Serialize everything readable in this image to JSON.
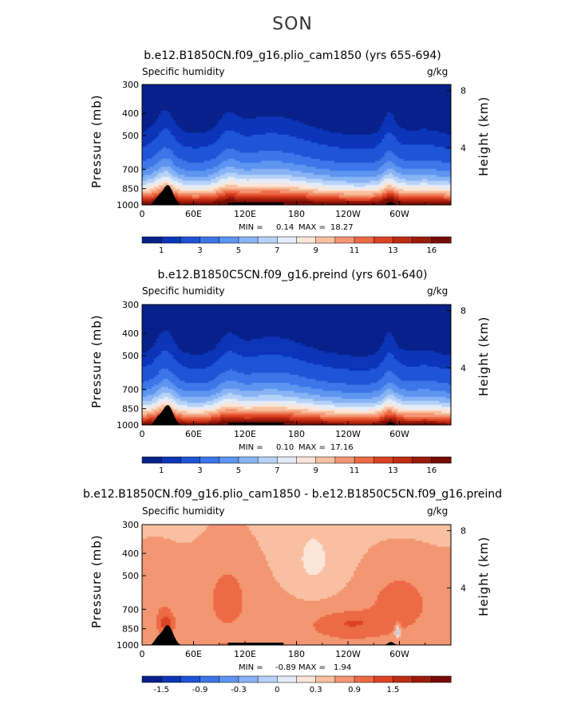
{
  "season": "SON",
  "colors": {
    "humidity_palette": [
      "#08218a",
      "#0c35b8",
      "#1e55d6",
      "#3c76e8",
      "#5e95f0",
      "#88b4f5",
      "#b6d2f8",
      "#e4ecf8",
      "#fbe5d8",
      "#f8c0a0",
      "#f39672",
      "#ec6a45",
      "#dc4325",
      "#be2c14",
      "#9a1c0a",
      "#760c06"
    ],
    "difference_palette": [
      "#08218a",
      "#0c35b8",
      "#1e55d6",
      "#3c76e8",
      "#5e95f0",
      "#88b4f5",
      "#b6d2f8",
      "#e4ecf8",
      "#fbe5d8",
      "#f8c0a0",
      "#f39672",
      "#ec6a45",
      "#dc4325",
      "#be2c14",
      "#9a1c0a",
      "#760c06"
    ],
    "topography": "#000000"
  },
  "chart_data": [
    {
      "type": "heatmap",
      "title": "b.e12.B1850CN.f09_g16.plio_cam1850 (yrs 655-694)",
      "variable": "Specific humidity",
      "units": "g/kg",
      "ylabel": "Pressure (mb)",
      "ylabel_right": "Height (km)",
      "x_ticks": [
        "0",
        "60E",
        "120E",
        "180",
        "120W",
        "60W"
      ],
      "x_tick_values": [
        0,
        60,
        120,
        180,
        240,
        300
      ],
      "x_range": [
        0,
        360
      ],
      "pressure_ticks": [
        "300",
        "400",
        "500",
        "700",
        "850",
        "1000"
      ],
      "pressure_values": [
        300,
        400,
        500,
        700,
        850,
        1000
      ],
      "pressure_range": [
        300,
        1000
      ],
      "height_ticks": [
        "8",
        "4"
      ],
      "height_values": [
        8,
        4
      ],
      "min_label": "MIN =",
      "min_value": "0.14",
      "max_label": "MAX =",
      "max_value": "18.27",
      "colorbar_labels": [
        "1",
        "3",
        "5",
        "7",
        "9",
        "11",
        "13",
        "16"
      ],
      "colorbar_levels": [
        0.5,
        1,
        2,
        3,
        4,
        5,
        6,
        7,
        8,
        9,
        10,
        11,
        12,
        13,
        14,
        16
      ],
      "colorbar_label_positions": [
        1,
        3,
        5,
        7,
        9,
        11,
        13,
        15
      ],
      "field_kind": "humidity",
      "surface_q": 16.5,
      "upper_q": 0.3
    },
    {
      "type": "heatmap",
      "title": "b.e12.B1850C5CN.f09_g16.preind (yrs 601-640)",
      "variable": "Specific humidity",
      "units": "g/kg",
      "ylabel": "Pressure (mb)",
      "ylabel_right": "Height (km)",
      "x_ticks": [
        "0",
        "60E",
        "120E",
        "180",
        "120W",
        "60W"
      ],
      "x_tick_values": [
        0,
        60,
        120,
        180,
        240,
        300
      ],
      "x_range": [
        0,
        360
      ],
      "pressure_ticks": [
        "300",
        "400",
        "500",
        "700",
        "850",
        "1000"
      ],
      "pressure_values": [
        300,
        400,
        500,
        700,
        850,
        1000
      ],
      "pressure_range": [
        300,
        1000
      ],
      "height_ticks": [
        "8",
        "4"
      ],
      "height_values": [
        8,
        4
      ],
      "min_label": "MIN =",
      "min_value": "0.10",
      "max_label": "MAX =",
      "max_value": "17.16",
      "colorbar_labels": [
        "1",
        "3",
        "5",
        "7",
        "9",
        "11",
        "13",
        "16"
      ],
      "colorbar_levels": [
        0.5,
        1,
        2,
        3,
        4,
        5,
        6,
        7,
        8,
        9,
        10,
        11,
        12,
        13,
        14,
        16
      ],
      "colorbar_label_positions": [
        1,
        3,
        5,
        7,
        9,
        11,
        13,
        15
      ],
      "field_kind": "humidity",
      "surface_q": 15.8,
      "upper_q": 0.25
    },
    {
      "type": "heatmap",
      "title": "b.e12.B1850CN.f09_g16.plio_cam1850 - b.e12.B1850C5CN.f09_g16.preind",
      "variable": "Specific humidity",
      "units": "g/kg",
      "ylabel": "Pressure (mb)",
      "ylabel_right": "Height (km)",
      "x_ticks": [
        "0",
        "60E",
        "120E",
        "180",
        "120W",
        "60W"
      ],
      "x_tick_values": [
        0,
        60,
        120,
        180,
        240,
        300
      ],
      "x_range": [
        0,
        360
      ],
      "pressure_ticks": [
        "300",
        "400",
        "500",
        "700",
        "850",
        "1000"
      ],
      "pressure_values": [
        300,
        400,
        500,
        700,
        850,
        1000
      ],
      "pressure_range": [
        300,
        1000
      ],
      "height_ticks": [
        "8",
        "4"
      ],
      "height_values": [
        8,
        4
      ],
      "min_label": "MIN =",
      "min_value": "-0.89",
      "max_label": "MAX =",
      "max_value": "1.94",
      "colorbar_labels": [
        "-1.5",
        "-0.9",
        "-0.3",
        "0",
        "0.3",
        "0.9",
        "1.5"
      ],
      "colorbar_levels": [
        -1.8,
        -1.5,
        -1.2,
        -0.9,
        -0.6,
        -0.3,
        -0.1,
        0,
        0.1,
        0.3,
        0.6,
        0.9,
        1.2,
        1.5,
        1.8
      ],
      "colorbar_label_positions": [
        1,
        3,
        5,
        7,
        9,
        11,
        13
      ],
      "field_kind": "difference",
      "surface_q": 1.0,
      "upper_q": 0.1
    }
  ]
}
